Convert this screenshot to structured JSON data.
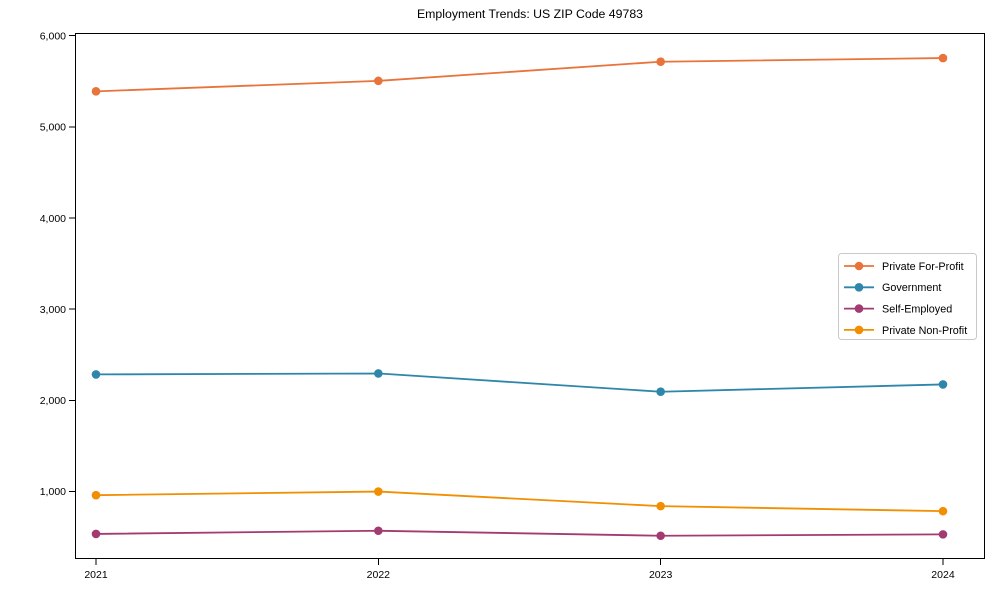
{
  "title": "Employment Trends: US ZIP Code 49783",
  "chart_data": {
    "type": "line",
    "title": "Employment Trends: US ZIP Code 49783",
    "xlabel": "",
    "ylabel": "",
    "x": [
      2021,
      2022,
      2023,
      2024
    ],
    "x_tick_labels": [
      "2021",
      "2022",
      "2023",
      "2024"
    ],
    "y_ticks": [
      1000,
      2000,
      3000,
      4000,
      5000,
      6000
    ],
    "y_tick_labels": [
      "1,000",
      "2,000",
      "3,000",
      "4,000",
      "5,000",
      "6,000"
    ],
    "ylim": [
      260,
      6030
    ],
    "grid": false,
    "marker": "circle",
    "legend_position": "center right",
    "axis_color": "#000000",
    "legend_border_color": "#c9c9c9",
    "background_color": "#ffffff",
    "series": [
      {
        "name": "Private For-Profit",
        "color": "#E8743B",
        "values": [
          5390,
          5505,
          5715,
          5755
        ]
      },
      {
        "name": "Government",
        "color": "#2E86AB",
        "values": [
          2285,
          2295,
          2095,
          2175
        ]
      },
      {
        "name": "Self-Employed",
        "color": "#A23B72",
        "values": [
          535,
          570,
          515,
          530
        ]
      },
      {
        "name": "Private Non-Profit",
        "color": "#F18F01",
        "values": [
          960,
          1000,
          840,
          785
        ]
      }
    ]
  }
}
